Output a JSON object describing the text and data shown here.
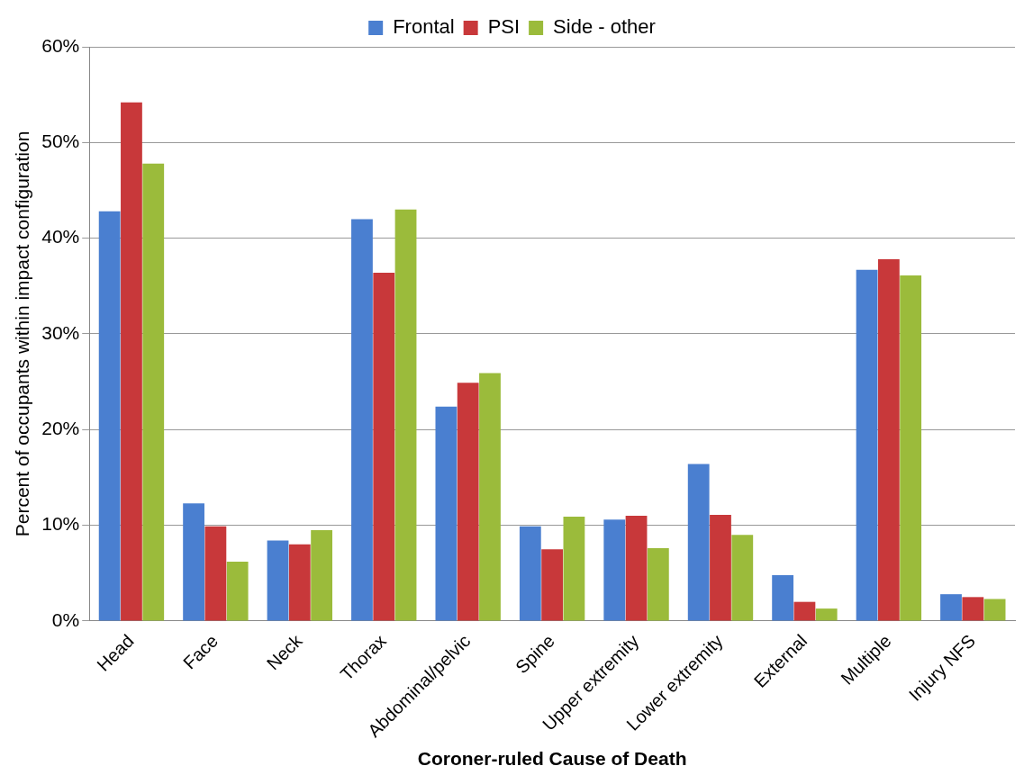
{
  "chart_data": {
    "type": "bar",
    "xlabel": "Coroner-ruled Cause of Death",
    "ylabel": "Percent of occupants within impact configuration",
    "categories": [
      "Head",
      "Face",
      "Neck",
      "Thorax",
      "Abdominal/pelvic",
      "Spine",
      "Upper extremity",
      "Lower extremity",
      "External",
      "Multiple",
      "Injury NFS"
    ],
    "series": [
      {
        "name": "Frontal",
        "color": "#4a7fd0",
        "values": [
          42.8,
          12.3,
          8.4,
          42.0,
          22.4,
          9.9,
          10.6,
          16.4,
          4.8,
          36.7,
          2.8
        ]
      },
      {
        "name": "PSI",
        "color": "#c8383a",
        "values": [
          54.2,
          9.9,
          8.0,
          36.4,
          24.9,
          7.5,
          11.0,
          11.1,
          2.0,
          37.8,
          2.5
        ]
      },
      {
        "name": "Side - other",
        "color": "#9bbb3b",
        "values": [
          47.8,
          6.2,
          9.5,
          43.0,
          25.9,
          10.9,
          7.6,
          9.0,
          1.3,
          36.1,
          2.3
        ]
      }
    ],
    "ylim": [
      0,
      60
    ],
    "yticks": [
      {
        "value": 0,
        "label": "0%"
      },
      {
        "value": 10,
        "label": "10%"
      },
      {
        "value": 20,
        "label": "20%"
      },
      {
        "value": 30,
        "label": "30%"
      },
      {
        "value": 40,
        "label": "40%"
      },
      {
        "value": 50,
        "label": "50%"
      },
      {
        "value": 60,
        "label": "60%"
      }
    ],
    "grid": "y",
    "legend": "top"
  }
}
